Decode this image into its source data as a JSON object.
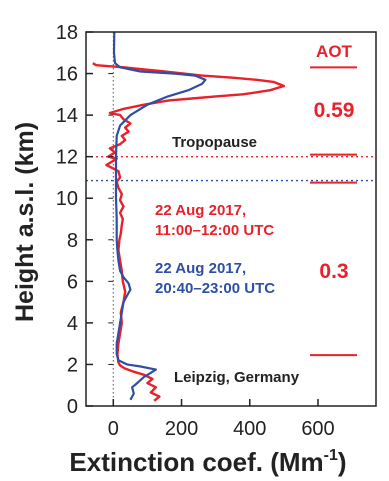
{
  "chart_data": {
    "type": "line",
    "title": "",
    "xlabel": "Extinction coef. (Mm",
    "xlabel_sup": "-1",
    "xlabel_close": ")",
    "ylabel": "Height a.s.l. (km)",
    "xlim": [
      -80,
      770
    ],
    "ylim": [
      0,
      18
    ],
    "xticks": [
      0,
      200,
      400,
      600
    ],
    "yticks": [
      0,
      2,
      4,
      6,
      8,
      10,
      12,
      14,
      16,
      18
    ],
    "colors": {
      "red": "#e8212b",
      "blue": "#2e4fa3",
      "axis": "#222222"
    },
    "series": [
      {
        "name": "22 Aug 2017, 11:00–12:00 UTC",
        "color": "#e8212b",
        "points": [
          [
            120,
            0.25
          ],
          [
            135,
            0.45
          ],
          [
            110,
            0.65
          ],
          [
            125,
            0.9
          ],
          [
            100,
            1.1
          ],
          [
            115,
            1.3
          ],
          [
            90,
            1.5
          ],
          [
            60,
            1.65
          ],
          [
            35,
            1.8
          ],
          [
            20,
            1.95
          ],
          [
            15,
            2.1
          ],
          [
            12,
            2.5
          ],
          [
            15,
            3.0
          ],
          [
            20,
            3.5
          ],
          [
            25,
            4.0
          ],
          [
            22,
            4.5
          ],
          [
            30,
            5.0
          ],
          [
            35,
            5.5
          ],
          [
            28,
            6.0
          ],
          [
            25,
            6.5
          ],
          [
            20,
            7.0
          ],
          [
            15,
            7.5
          ],
          [
            18,
            8.0
          ],
          [
            22,
            8.3
          ],
          [
            25,
            8.7
          ],
          [
            28,
            9.0
          ],
          [
            20,
            9.3
          ],
          [
            30,
            9.6
          ],
          [
            20,
            9.9
          ],
          [
            25,
            10.2
          ],
          [
            15,
            10.5
          ],
          [
            10,
            10.8
          ],
          [
            20,
            11.0
          ],
          [
            15,
            11.3
          ],
          [
            -20,
            11.6
          ],
          [
            10,
            11.9
          ],
          [
            -15,
            12.0
          ],
          [
            5,
            12.2
          ],
          [
            -10,
            12.4
          ],
          [
            20,
            12.6
          ],
          [
            35,
            12.8
          ],
          [
            25,
            13.0
          ],
          [
            45,
            13.2
          ],
          [
            35,
            13.4
          ],
          [
            50,
            13.6
          ],
          [
            30,
            13.8
          ],
          [
            20,
            14.0
          ],
          [
            -10,
            14.1
          ],
          [
            30,
            14.3
          ],
          [
            90,
            14.5
          ],
          [
            160,
            14.7
          ],
          [
            230,
            14.8
          ],
          [
            300,
            14.9
          ],
          [
            380,
            15.0
          ],
          [
            420,
            15.1
          ],
          [
            460,
            15.2
          ],
          [
            500,
            15.4
          ],
          [
            470,
            15.6
          ],
          [
            420,
            15.7
          ],
          [
            350,
            15.8
          ],
          [
            260,
            15.9
          ],
          [
            150,
            16.1
          ],
          [
            30,
            16.3
          ],
          [
            -50,
            16.4
          ],
          [
            -60,
            16.5
          ]
        ]
      },
      {
        "name": "22 Aug 2017, 20:40–23:00 UTC",
        "color": "#2e4fa3",
        "points": [
          [
            50,
            0.3
          ],
          [
            60,
            0.6
          ],
          [
            55,
            0.9
          ],
          [
            70,
            1.1
          ],
          [
            90,
            1.4
          ],
          [
            110,
            1.6
          ],
          [
            125,
            1.75
          ],
          [
            80,
            1.9
          ],
          [
            40,
            2.0
          ],
          [
            15,
            2.2
          ],
          [
            10,
            2.5
          ],
          [
            10,
            3.0
          ],
          [
            15,
            3.5
          ],
          [
            20,
            4.0
          ],
          [
            25,
            4.5
          ],
          [
            30,
            5.0
          ],
          [
            40,
            5.3
          ],
          [
            50,
            5.6
          ],
          [
            45,
            5.9
          ],
          [
            30,
            6.2
          ],
          [
            20,
            6.5
          ],
          [
            15,
            7.0
          ],
          [
            12,
            7.5
          ],
          [
            10,
            8.0
          ],
          [
            10,
            9.0
          ],
          [
            8,
            10.0
          ],
          [
            8,
            11.0
          ],
          [
            8,
            12.0
          ],
          [
            10,
            13.0
          ],
          [
            20,
            13.5
          ],
          [
            50,
            14.0
          ],
          [
            100,
            14.5
          ],
          [
            160,
            14.9
          ],
          [
            220,
            15.2
          ],
          [
            260,
            15.5
          ],
          [
            270,
            15.7
          ],
          [
            240,
            15.9
          ],
          [
            180,
            16.0
          ],
          [
            80,
            16.1
          ],
          [
            20,
            16.3
          ],
          [
            5,
            16.5
          ],
          [
            2,
            17.0
          ],
          [
            3,
            18.0
          ]
        ]
      }
    ],
    "ref_lines": [
      {
        "y": 12.0,
        "color": "#e8212b",
        "style": "dotted"
      },
      {
        "y": 10.85,
        "color": "#2e4fa3",
        "style": "dotted"
      }
    ],
    "aot_markers": [
      16.3,
      12.1,
      10.75,
      2.45
    ],
    "annotations": {
      "aot_header": "AOT",
      "aot_upper": "0.59",
      "aot_lower": "0.3",
      "tropopause": "Tropopause",
      "red_label_line1": "22 Aug 2017,",
      "red_label_line2": "11:00–12:00 UTC",
      "blue_label_line1": "22 Aug 2017,",
      "blue_label_line2": "20:40–23:00 UTC",
      "location": "Leipzig, Germany"
    }
  }
}
